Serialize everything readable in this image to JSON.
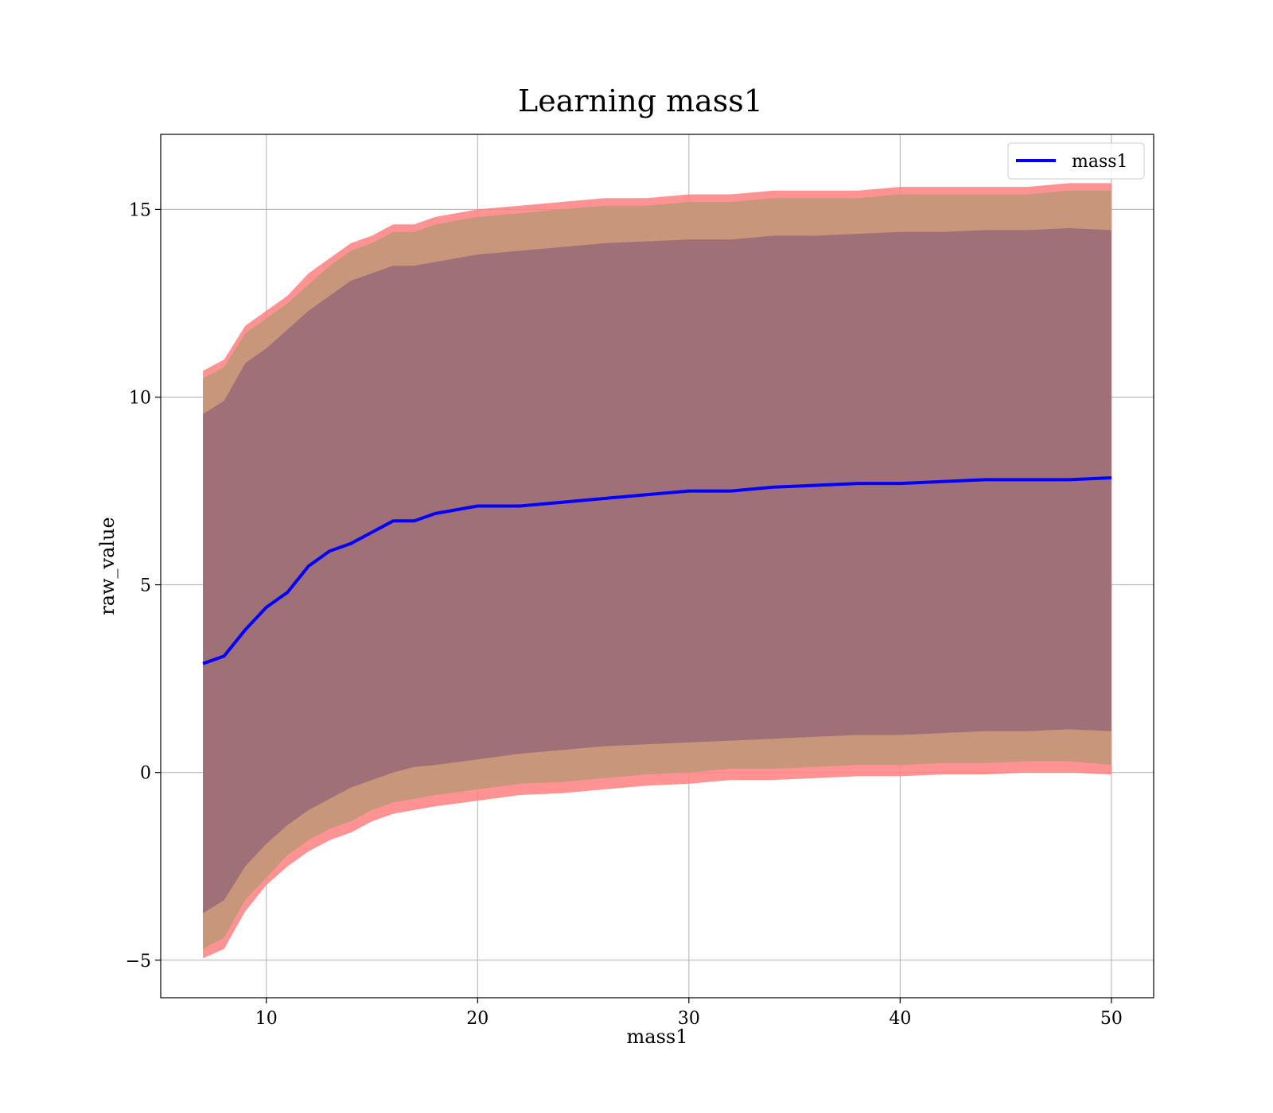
{
  "chart_data": {
    "type": "area",
    "title": "Learning mass1",
    "xlabel": "mass1",
    "ylabel": "raw_value",
    "xlim": [
      5,
      52
    ],
    "ylim": [
      -6,
      17
    ],
    "x_ticks": [
      10,
      20,
      30,
      40,
      50
    ],
    "y_ticks": [
      -5,
      0,
      5,
      10,
      15
    ],
    "x_tick_labels": [
      "10",
      "20",
      "30",
      "40",
      "50"
    ],
    "y_tick_labels": [
      "−5",
      "0",
      "5",
      "10",
      "15"
    ],
    "grid": true,
    "legend": {
      "position": "top-right",
      "entries": [
        "mass1"
      ]
    },
    "colors": {
      "line": "#0000ff",
      "band_outer": "#ff8080",
      "band_middle": "#c8967a",
      "band_inner": "#a07078"
    },
    "x": [
      7,
      8,
      9,
      10,
      11,
      12,
      13,
      14,
      15,
      16,
      17,
      18,
      20,
      22,
      24,
      26,
      28,
      30,
      32,
      34,
      36,
      38,
      40,
      42,
      44,
      46,
      48,
      50
    ],
    "series": [
      {
        "name": "mass1",
        "values": [
          2.9,
          3.1,
          3.8,
          4.4,
          4.8,
          5.5,
          5.9,
          6.1,
          6.4,
          6.7,
          6.7,
          6.9,
          7.1,
          7.1,
          7.2,
          7.3,
          7.4,
          7.5,
          7.5,
          7.6,
          7.65,
          7.7,
          7.7,
          7.75,
          7.8,
          7.8,
          7.8,
          7.85
        ]
      }
    ],
    "bands": [
      {
        "upper": [
          10.7,
          11.0,
          11.9,
          12.3,
          12.7,
          13.3,
          13.7,
          14.1,
          14.3,
          14.6,
          14.6,
          14.8,
          15.0,
          15.1,
          15.2,
          15.3,
          15.3,
          15.4,
          15.4,
          15.5,
          15.5,
          15.5,
          15.6,
          15.6,
          15.6,
          15.6,
          15.7,
          15.7
        ],
        "lower": [
          -4.95,
          -4.7,
          -3.7,
          -3.0,
          -2.5,
          -2.1,
          -1.8,
          -1.6,
          -1.3,
          -1.1,
          -1.0,
          -0.9,
          -0.75,
          -0.6,
          -0.55,
          -0.45,
          -0.35,
          -0.3,
          -0.2,
          -0.2,
          -0.15,
          -0.1,
          -0.1,
          -0.05,
          -0.05,
          0.0,
          0.0,
          -0.05
        ]
      },
      {
        "upper": [
          10.5,
          10.8,
          11.7,
          12.1,
          12.5,
          13.0,
          13.5,
          13.9,
          14.1,
          14.4,
          14.4,
          14.6,
          14.8,
          14.9,
          15.0,
          15.1,
          15.1,
          15.2,
          15.2,
          15.3,
          15.3,
          15.3,
          15.4,
          15.4,
          15.4,
          15.4,
          15.5,
          15.5
        ],
        "lower": [
          -4.7,
          -4.4,
          -3.4,
          -2.8,
          -2.2,
          -1.8,
          -1.5,
          -1.3,
          -1.0,
          -0.8,
          -0.7,
          -0.6,
          -0.45,
          -0.3,
          -0.25,
          -0.15,
          -0.05,
          0.0,
          0.1,
          0.1,
          0.15,
          0.2,
          0.2,
          0.25,
          0.25,
          0.3,
          0.3,
          0.2
        ]
      },
      {
        "upper": [
          9.55,
          9.9,
          10.9,
          11.3,
          11.8,
          12.3,
          12.7,
          13.1,
          13.3,
          13.5,
          13.5,
          13.6,
          13.8,
          13.9,
          14.0,
          14.1,
          14.15,
          14.2,
          14.2,
          14.3,
          14.3,
          14.35,
          14.4,
          14.4,
          14.45,
          14.45,
          14.5,
          14.45
        ],
        "lower": [
          -3.75,
          -3.4,
          -2.5,
          -1.9,
          -1.4,
          -1.0,
          -0.7,
          -0.4,
          -0.2,
          0.0,
          0.15,
          0.2,
          0.35,
          0.5,
          0.6,
          0.7,
          0.75,
          0.8,
          0.85,
          0.9,
          0.95,
          1.0,
          1.0,
          1.05,
          1.1,
          1.1,
          1.15,
          1.1
        ]
      }
    ]
  }
}
